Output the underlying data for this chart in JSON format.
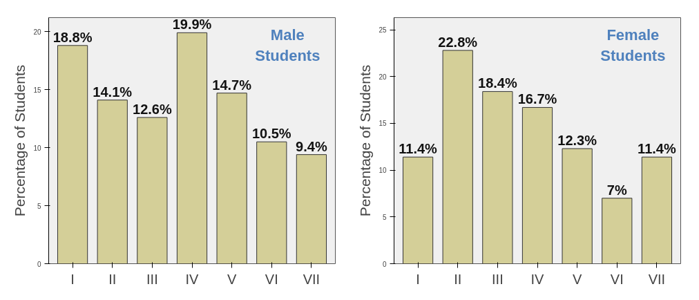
{
  "chart_data": [
    {
      "type": "bar",
      "title": "Male Students",
      "ylabel": "Percentage of Students",
      "categories": [
        "I",
        "II",
        "III",
        "IV",
        "V",
        "VI",
        "VII"
      ],
      "values": [
        18.8,
        14.1,
        12.6,
        19.9,
        14.7,
        10.5,
        9.4
      ],
      "value_labels": [
        "18.8%",
        "14.1%",
        "12.6%",
        "19.9%",
        "14.7%",
        "10.5%",
        "9.4%"
      ],
      "color": "#d4cf98",
      "ylim": [
        0,
        21.2
      ],
      "yticks": [
        0,
        5,
        10,
        15,
        20
      ],
      "grid": false
    },
    {
      "type": "bar",
      "title": "Female Students",
      "ylabel": "Percentage of Students",
      "categories": [
        "I",
        "II",
        "III",
        "IV",
        "V",
        "VI",
        "VII"
      ],
      "values": [
        11.4,
        22.8,
        18.4,
        16.7,
        12.3,
        7,
        11.4
      ],
      "value_labels": [
        "11.4%",
        "22.8%",
        "18.4%",
        "16.7%",
        "12.3%",
        "7%",
        "11.4%"
      ],
      "color": "#d4cf98",
      "ylim": [
        0,
        26.3
      ],
      "yticks": [
        0,
        5,
        10,
        15,
        20,
        25
      ],
      "grid": false
    }
  ]
}
